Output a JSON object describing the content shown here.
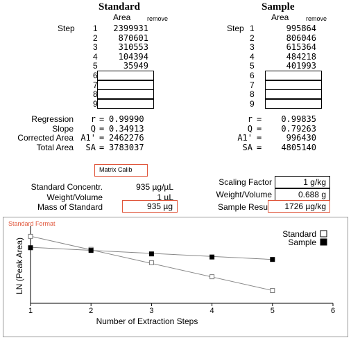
{
  "standard": {
    "title": "Standard",
    "area_header": "Area",
    "remove_label": "remove",
    "step_label": "Step",
    "steps": [
      "1",
      "2",
      "3",
      "4",
      "5",
      "6",
      "7",
      "8",
      "9"
    ],
    "areas": [
      "2399931",
      "870601",
      "310553",
      "104394",
      "35949"
    ],
    "stats": [
      {
        "label": "Regression",
        "sym": "r",
        "value": "0.99990"
      },
      {
        "label": "Slope",
        "sym": "Q",
        "value": "0.34913"
      },
      {
        "label": "Corrected Area",
        "sym": "A1'",
        "value": "2462276"
      },
      {
        "label": "Total Area",
        "sym": "SA",
        "value": "3783037"
      }
    ]
  },
  "sample": {
    "title": "Sample",
    "area_header": "Area",
    "remove_label": "remove",
    "step_label": "Step",
    "steps": [
      "1",
      "2",
      "3",
      "4",
      "5",
      "6",
      "7",
      "8",
      "9"
    ],
    "areas": [
      "995864",
      "806046",
      "615364",
      "484218",
      "401993"
    ],
    "stats": [
      {
        "sym": "r",
        "value": "0.99835"
      },
      {
        "sym": "Q",
        "value": "0.79263"
      },
      {
        "sym": "A1'",
        "value": "996430"
      },
      {
        "sym": "SA",
        "value": "4805140"
      }
    ]
  },
  "matrix_button": "Matrix  Calib",
  "params_left": [
    {
      "label": "Standard Concentr.",
      "value": "935 µg/µL"
    },
    {
      "label": "Weight/Volume",
      "value": "1 µL"
    },
    {
      "label": "Mass of Standard",
      "value": "935  µg"
    }
  ],
  "params_right": [
    {
      "label": "Scaling Factor",
      "value": "1 g/kg"
    },
    {
      "label": "Weight/Volume",
      "value": "0.688 g"
    },
    {
      "label": "Sample Result",
      "value": "1726 µg/kg"
    }
  ],
  "chart_panel_label": "Standard Format",
  "colors": {
    "accent": "#e0553a"
  },
  "chart_data": {
    "type": "line",
    "xlabel": "Number of Extraction Steps",
    "ylabel": "LN (Peak Area)",
    "xlim": [
      1,
      6
    ],
    "x_ticks": [
      "1",
      "2",
      "3",
      "4",
      "5",
      "6"
    ],
    "series": [
      {
        "name": "Standard",
        "marker": "open-square",
        "x": [
          1,
          2,
          3,
          4,
          5
        ],
        "y": [
          14.69,
          13.68,
          12.65,
          11.56,
          10.49
        ]
      },
      {
        "name": "Sample",
        "marker": "filled-square",
        "x": [
          1,
          2,
          3,
          4,
          5
        ],
        "y": [
          13.81,
          13.6,
          13.33,
          13.09,
          12.9
        ]
      }
    ],
    "fit_lines": [
      {
        "series": "Standard",
        "from": [
          1,
          14.7
        ],
        "to": [
          5,
          10.49
        ]
      },
      {
        "series": "Sample",
        "from": [
          1,
          13.84
        ],
        "to": [
          5,
          12.9
        ]
      }
    ],
    "ylim": [
      9.5,
      15.3
    ],
    "legend": "top-right"
  }
}
